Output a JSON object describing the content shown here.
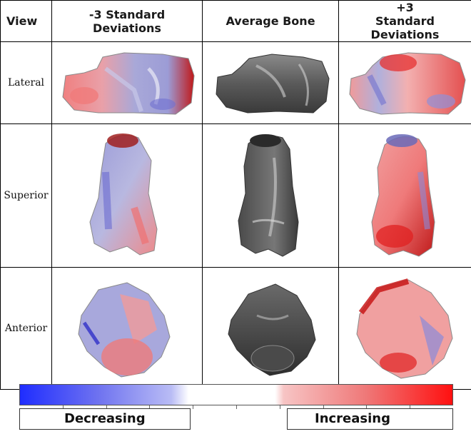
{
  "table": {
    "headers": {
      "view": "View",
      "minus": "-3 Standard Deviations",
      "average": "Average Bone",
      "plus": "+3 Standard Deviations"
    },
    "rows": [
      {
        "label": "Lateral"
      },
      {
        "label": "Superior"
      },
      {
        "label": "Anterior"
      }
    ]
  },
  "legend": {
    "decreasing": "Decreasing",
    "increasing": "Increasing",
    "colors": {
      "decrease": "#1f2dff",
      "neutral": "#ffffff",
      "increase": "#ff1010",
      "bone": "#5a5a5a"
    }
  }
}
